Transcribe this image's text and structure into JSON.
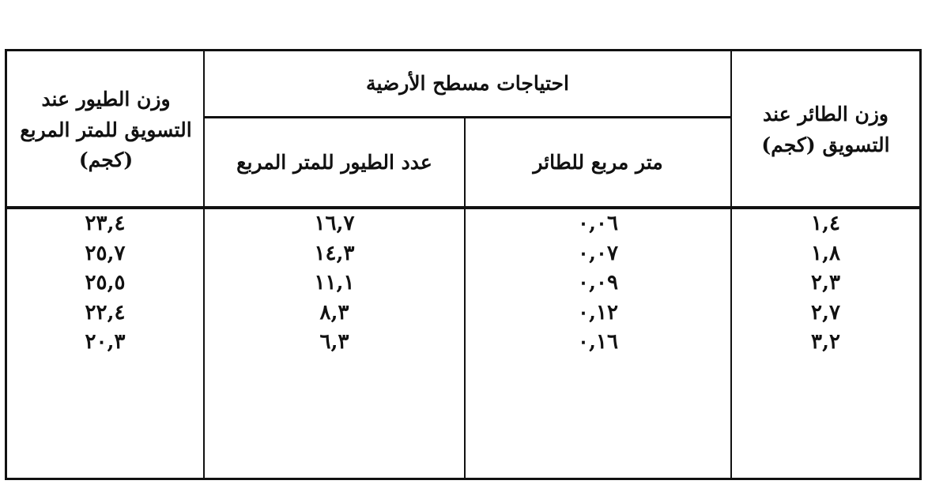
{
  "table": {
    "headers": {
      "bird_weight": "وزن الطائر عند التسويق (كجم)",
      "floor_space_group": "احتياجات مسطح الأرضية",
      "sqm_per_bird": "متر مربع للطائر",
      "birds_per_sqm": "عدد الطيور للمتر المربع",
      "weight_per_sqm": "وزن الطيور عند التسويق للمتر المربع (كجم)"
    },
    "columns": {
      "bird_weight": [
        "١,٤",
        "١,٨",
        "٢,٣",
        "٢,٧",
        "٣,٢"
      ],
      "sqm_per_bird": [
        "٠,٠٦",
        "٠,٠٧",
        "٠,٠٩",
        "٠,١٢",
        "٠,١٦"
      ],
      "birds_per_sqm": [
        "١٦,٧",
        "١٤,٣",
        "١١,١",
        "٨,٣",
        "٦,٣"
      ],
      "weight_per_sqm": [
        "٢٣,٤",
        "٢٥,٧",
        "٢٥,٥",
        "٢٢,٤",
        "٢٠,٣"
      ]
    }
  }
}
